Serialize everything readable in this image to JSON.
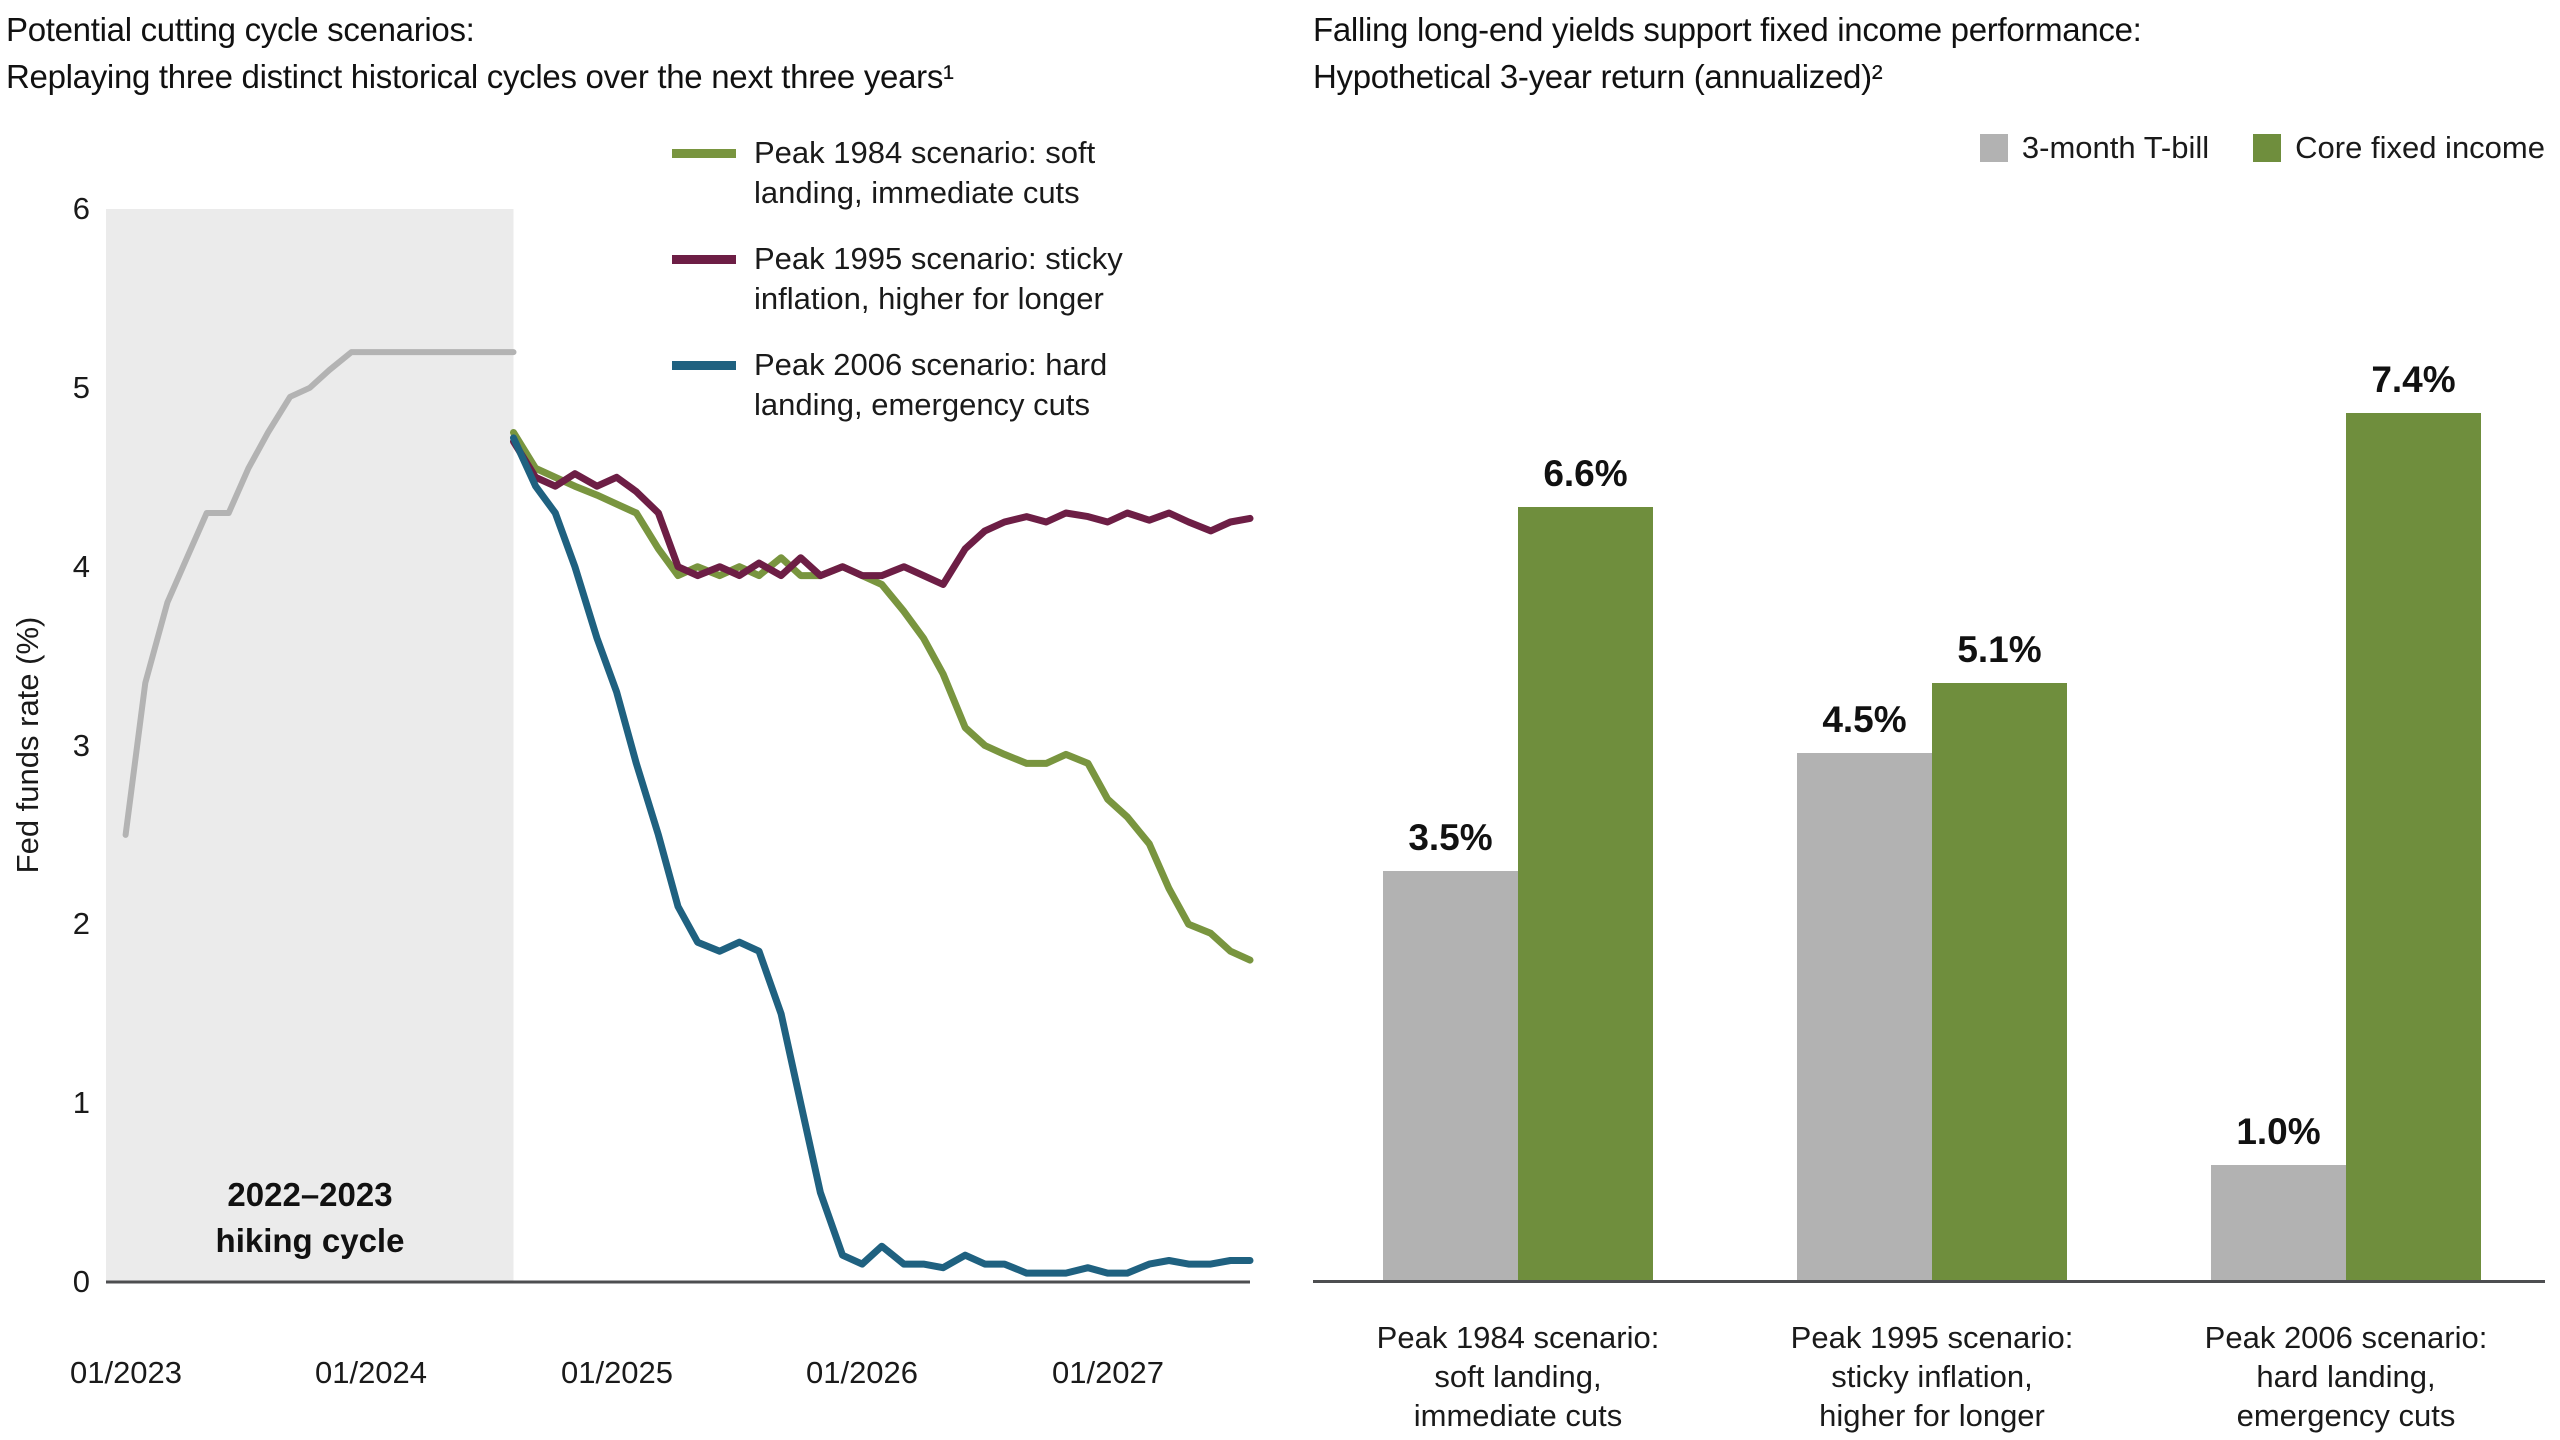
{
  "page": {
    "background": "#ffffff",
    "text_color": "#1a1a1a",
    "axis_color": "#4d4e50"
  },
  "chart_data": [
    {
      "type": "line",
      "title": "Potential cutting cycle scenarios:",
      "subtitle": "Replaying three distinct historical cycles over the next three years¹",
      "ylabel": "Fed funds rate (%)",
      "ylim": [
        0,
        6
      ],
      "yticks": [
        0,
        1,
        2,
        3,
        4,
        5,
        6
      ],
      "xlim": [
        2022.92,
        2027.58
      ],
      "xticks": [
        {
          "x": 2023,
          "label": "01/2023"
        },
        {
          "x": 2024,
          "label": "01/2024"
        },
        {
          "x": 2025,
          "label": "01/2025"
        },
        {
          "x": 2026,
          "label": "01/2026"
        },
        {
          "x": 2027,
          "label": "01/2027"
        }
      ],
      "grid": false,
      "legend_position": "top-right",
      "shaded_region": {
        "from": 2022.92,
        "to": 2024.58,
        "color": "#ebebeb",
        "label_lines": [
          "2022–2023",
          "hiking cycle"
        ]
      },
      "series": [
        {
          "key": "historical",
          "name": "2022–2023 hiking cycle",
          "color": "#b3b3b3",
          "width": 6,
          "in_legend": false,
          "x": [
            2023.0,
            2023.08,
            2023.17,
            2023.25,
            2023.33,
            2023.42,
            2023.5,
            2023.58,
            2023.67,
            2023.75,
            2023.83,
            2023.92,
            2024.0,
            2024.58
          ],
          "y": [
            2.5,
            3.35,
            3.8,
            4.05,
            4.3,
            4.3,
            4.55,
            4.75,
            4.95,
            5.0,
            5.1,
            5.2,
            5.2,
            5.2
          ]
        },
        {
          "key": "peak-1984",
          "name": "Peak 1984 scenario: soft landing, immediate cuts",
          "color": "#79953f",
          "width": 7,
          "in_legend": true,
          "x": [
            2024.58,
            2024.67,
            2024.75,
            2024.83,
            2024.92,
            2025.0,
            2025.08,
            2025.17,
            2025.25,
            2025.33,
            2025.42,
            2025.5,
            2025.58,
            2025.67,
            2025.75,
            2025.83,
            2025.92,
            2026.0,
            2026.08,
            2026.17,
            2026.25,
            2026.33,
            2026.42,
            2026.5,
            2026.58,
            2026.67,
            2026.75,
            2026.83,
            2026.92,
            2027.0,
            2027.08,
            2027.17,
            2027.25,
            2027.33,
            2027.42,
            2027.5,
            2027.58
          ],
          "y": [
            4.75,
            4.55,
            4.5,
            4.45,
            4.4,
            4.35,
            4.3,
            4.1,
            3.95,
            4.0,
            3.95,
            4.0,
            3.95,
            4.05,
            3.95,
            3.95,
            4.0,
            3.95,
            3.9,
            3.75,
            3.6,
            3.4,
            3.1,
            3.0,
            2.95,
            2.9,
            2.9,
            2.95,
            2.9,
            2.7,
            2.6,
            2.45,
            2.2,
            2.0,
            1.95,
            1.85,
            1.8
          ]
        },
        {
          "key": "peak-1995",
          "name": "Peak 1995 scenario: sticky inflation, higher for longer",
          "color": "#6d1e45",
          "width": 7,
          "in_legend": true,
          "x": [
            2024.58,
            2024.67,
            2024.75,
            2024.83,
            2024.92,
            2025.0,
            2025.08,
            2025.17,
            2025.25,
            2025.33,
            2025.42,
            2025.5,
            2025.58,
            2025.67,
            2025.75,
            2025.83,
            2025.92,
            2026.0,
            2026.08,
            2026.17,
            2026.25,
            2026.33,
            2026.42,
            2026.5,
            2026.58,
            2026.67,
            2026.75,
            2026.83,
            2026.92,
            2027.0,
            2027.08,
            2027.17,
            2027.25,
            2027.33,
            2027.42,
            2027.5,
            2027.58
          ],
          "y": [
            4.7,
            4.5,
            4.45,
            4.52,
            4.45,
            4.5,
            4.42,
            4.3,
            4.0,
            3.95,
            4.0,
            3.95,
            4.02,
            3.95,
            4.05,
            3.95,
            4.0,
            3.95,
            3.95,
            4.0,
            3.95,
            3.9,
            4.1,
            4.2,
            4.25,
            4.28,
            4.25,
            4.3,
            4.28,
            4.25,
            4.3,
            4.26,
            4.3,
            4.25,
            4.2,
            4.25,
            4.27
          ]
        },
        {
          "key": "peak-2006",
          "name": "Peak 2006 scenario: hard landing, emergency cuts",
          "color": "#1f6180",
          "width": 7,
          "in_legend": true,
          "x": [
            2024.58,
            2024.67,
            2024.75,
            2024.83,
            2024.92,
            2025.0,
            2025.08,
            2025.17,
            2025.25,
            2025.33,
            2025.42,
            2025.5,
            2025.58,
            2025.67,
            2025.75,
            2025.83,
            2025.92,
            2026.0,
            2026.08,
            2026.17,
            2026.25,
            2026.33,
            2026.42,
            2026.5,
            2026.58,
            2026.67,
            2026.75,
            2026.83,
            2026.92,
            2027.0,
            2027.08,
            2027.17,
            2027.25,
            2027.33,
            2027.42,
            2027.5,
            2027.58
          ],
          "y": [
            4.72,
            4.45,
            4.3,
            4.0,
            3.6,
            3.3,
            2.9,
            2.5,
            2.1,
            1.9,
            1.85,
            1.9,
            1.85,
            1.5,
            1.0,
            0.5,
            0.15,
            0.1,
            0.2,
            0.1,
            0.1,
            0.08,
            0.15,
            0.1,
            0.1,
            0.05,
            0.05,
            0.05,
            0.08,
            0.05,
            0.05,
            0.1,
            0.12,
            0.1,
            0.1,
            0.12,
            0.12
          ]
        }
      ]
    },
    {
      "type": "bar",
      "title": "Falling long-end yields support fixed income performance:",
      "subtitle": "Hypothetical 3-year return (annualized)²",
      "ylim": [
        0,
        8
      ],
      "grid": false,
      "legend_position": "top-right",
      "baseline_color": "#4d4e50",
      "categories": [
        [
          "Peak 1984 scenario:",
          "soft landing,",
          "immediate cuts"
        ],
        [
          "Peak 1995 scenario:",
          "sticky inflation,",
          "higher for longer"
        ],
        [
          "Peak 2006 scenario:",
          "hard landing,",
          "emergency cuts"
        ]
      ],
      "series": [
        {
          "key": "t-bill",
          "name": "3-month T-bill",
          "color": "#b2b2b2",
          "values": [
            3.5,
            4.5,
            1.0
          ]
        },
        {
          "key": "core-fixed-income",
          "name": "Core fixed income",
          "color": "#6f8e3d",
          "values": [
            6.6,
            5.1,
            7.4
          ]
        }
      ],
      "value_labels": [
        [
          "3.5%",
          "4.5%",
          "1.0%"
        ],
        [
          "6.6%",
          "5.1%",
          "7.4%"
        ]
      ]
    }
  ]
}
